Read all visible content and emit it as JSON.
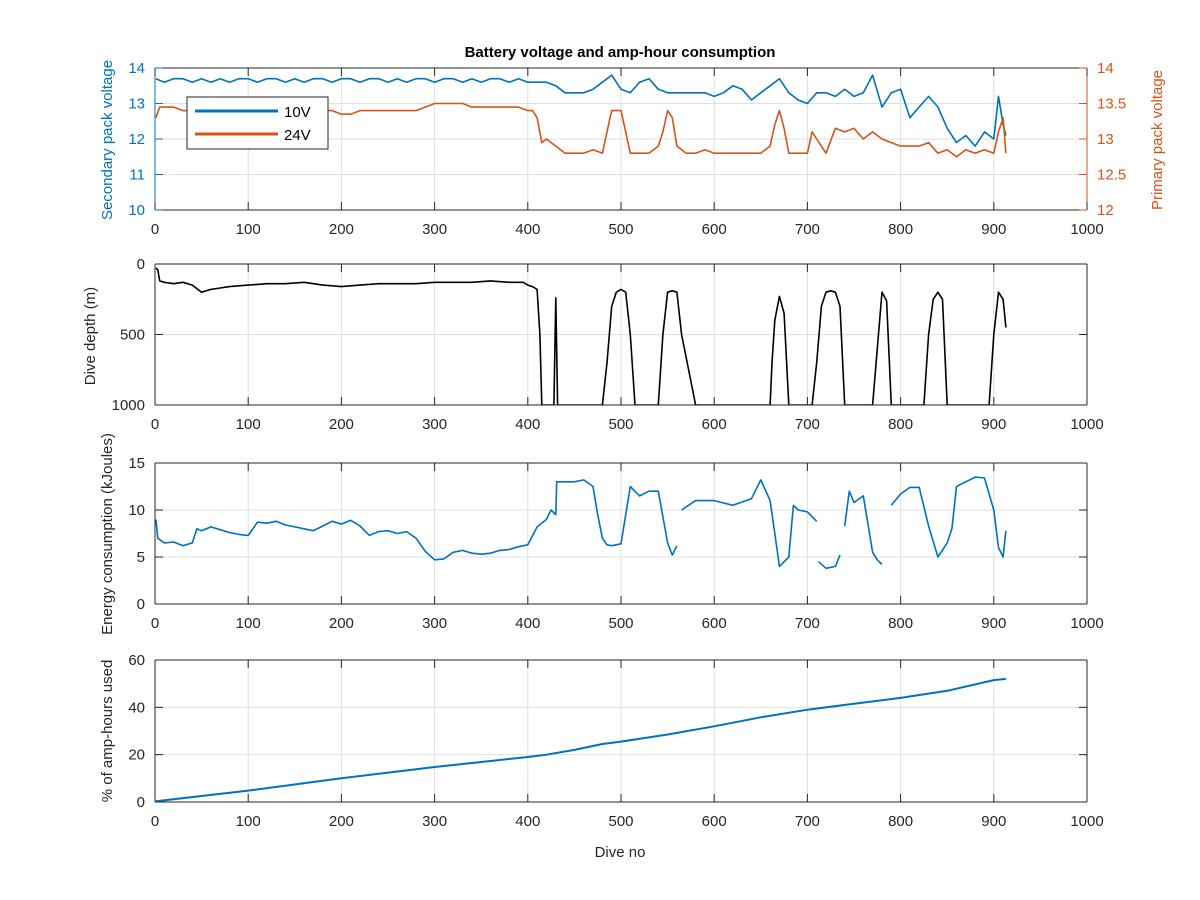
{
  "colors": {
    "blue": "#0072bd",
    "orange": "#d95319",
    "black": "#000000",
    "grid": "#dfdfdf",
    "axis": "#262626"
  },
  "chart_data": [
    {
      "id": "voltage",
      "type": "line",
      "title": "Battery voltage and amp-hour consumption",
      "xlabel": "",
      "ylabel_left": "Secondary pack voltage",
      "ylabel_right": "Primary pack voltage",
      "xlim": [
        0,
        1000
      ],
      "xticks": [
        0,
        100,
        200,
        300,
        400,
        500,
        600,
        700,
        800,
        900,
        1000
      ],
      "ylim_left": [
        10,
        14
      ],
      "yticks_left": [
        10,
        11,
        12,
        13,
        14
      ],
      "ylim_right": [
        12,
        14
      ],
      "yticks_right": [
        12,
        12.5,
        13,
        13.5,
        14
      ],
      "yticklabels_right": [
        "12",
        "12.5",
        "13",
        "13.5",
        "14"
      ],
      "grid": true,
      "legend": {
        "position": "top-left",
        "entries": [
          "10V",
          "24V"
        ]
      },
      "series": [
        {
          "name": "10V",
          "axis": "left",
          "color": "blue",
          "x": [
            1,
            10,
            20,
            30,
            40,
            50,
            60,
            70,
            80,
            90,
            100,
            110,
            120,
            130,
            140,
            150,
            160,
            170,
            180,
            190,
            200,
            210,
            220,
            230,
            240,
            250,
            260,
            270,
            280,
            290,
            300,
            310,
            320,
            330,
            340,
            350,
            360,
            370,
            380,
            390,
            400,
            410,
            420,
            430,
            440,
            450,
            460,
            470,
            480,
            490,
            500,
            510,
            520,
            530,
            540,
            550,
            560,
            570,
            580,
            590,
            600,
            610,
            620,
            630,
            640,
            650,
            660,
            670,
            680,
            690,
            700,
            710,
            720,
            730,
            740,
            750,
            760,
            770,
            780,
            790,
            800,
            810,
            820,
            830,
            840,
            850,
            860,
            870,
            880,
            890,
            900,
            905,
            910,
            913
          ],
          "y": [
            13.7,
            13.6,
            13.7,
            13.7,
            13.6,
            13.7,
            13.6,
            13.7,
            13.6,
            13.7,
            13.7,
            13.6,
            13.7,
            13.7,
            13.6,
            13.7,
            13.6,
            13.7,
            13.7,
            13.6,
            13.7,
            13.7,
            13.6,
            13.7,
            13.7,
            13.6,
            13.7,
            13.6,
            13.7,
            13.7,
            13.6,
            13.7,
            13.7,
            13.6,
            13.7,
            13.6,
            13.7,
            13.7,
            13.6,
            13.7,
            13.6,
            13.6,
            13.6,
            13.5,
            13.3,
            13.3,
            13.3,
            13.4,
            13.6,
            13.8,
            13.4,
            13.3,
            13.6,
            13.7,
            13.4,
            13.3,
            13.3,
            13.3,
            13.3,
            13.3,
            13.2,
            13.3,
            13.5,
            13.4,
            13.1,
            13.3,
            13.5,
            13.7,
            13.3,
            13.1,
            13.0,
            13.3,
            13.3,
            13.2,
            13.4,
            13.2,
            13.3,
            13.8,
            12.9,
            13.3,
            13.4,
            12.6,
            12.9,
            13.2,
            12.9,
            12.3,
            11.9,
            12.1,
            11.8,
            12.2,
            12.0,
            13.2,
            12.4,
            12.1
          ]
        },
        {
          "name": "24V",
          "axis": "right",
          "color": "orange",
          "x": [
            1,
            5,
            10,
            20,
            30,
            40,
            50,
            60,
            70,
            80,
            90,
            100,
            110,
            120,
            130,
            140,
            150,
            160,
            170,
            180,
            190,
            200,
            210,
            220,
            230,
            240,
            250,
            260,
            270,
            280,
            290,
            300,
            310,
            320,
            330,
            340,
            350,
            360,
            370,
            380,
            390,
            400,
            405,
            410,
            415,
            420,
            430,
            440,
            450,
            460,
            470,
            480,
            485,
            490,
            500,
            505,
            510,
            520,
            530,
            540,
            545,
            550,
            555,
            560,
            570,
            580,
            590,
            600,
            610,
            620,
            630,
            640,
            650,
            660,
            665,
            670,
            675,
            680,
            690,
            700,
            705,
            710,
            720,
            730,
            740,
            750,
            760,
            770,
            780,
            790,
            800,
            810,
            820,
            830,
            840,
            850,
            860,
            870,
            880,
            890,
            900,
            905,
            910,
            913
          ],
          "y": [
            13.3,
            13.45,
            13.45,
            13.45,
            13.4,
            13.4,
            13.4,
            13.4,
            13.4,
            13.4,
            13.4,
            13.4,
            13.4,
            13.4,
            13.45,
            13.4,
            13.4,
            13.4,
            13.4,
            13.4,
            13.4,
            13.35,
            13.35,
            13.4,
            13.4,
            13.4,
            13.4,
            13.4,
            13.4,
            13.4,
            13.45,
            13.5,
            13.5,
            13.5,
            13.5,
            13.45,
            13.45,
            13.45,
            13.45,
            13.45,
            13.45,
            13.4,
            13.4,
            13.3,
            12.95,
            13.0,
            12.9,
            12.8,
            12.8,
            12.8,
            12.85,
            12.8,
            13.1,
            13.4,
            13.4,
            13.1,
            12.8,
            12.8,
            12.8,
            12.9,
            13.1,
            13.4,
            13.3,
            12.9,
            12.8,
            12.8,
            12.85,
            12.8,
            12.8,
            12.8,
            12.8,
            12.8,
            12.8,
            12.9,
            13.2,
            13.4,
            13.15,
            12.8,
            12.8,
            12.8,
            13.1,
            13.0,
            12.8,
            13.15,
            13.1,
            13.15,
            13.0,
            13.1,
            13.0,
            12.95,
            12.9,
            12.9,
            12.9,
            12.95,
            12.8,
            12.85,
            12.75,
            12.85,
            12.8,
            12.85,
            12.8,
            13.1,
            13.3,
            12.8
          ]
        }
      ]
    },
    {
      "id": "depth",
      "type": "line",
      "title": "",
      "xlabel": "",
      "ylabel": "Dive depth (m)",
      "xlim": [
        0,
        1000
      ],
      "xticks": [
        0,
        100,
        200,
        300,
        400,
        500,
        600,
        700,
        800,
        900,
        1000
      ],
      "ylim": [
        0,
        1000
      ],
      "yticks": [
        0,
        500,
        1000
      ],
      "yreversed": true,
      "grid": true,
      "series": [
        {
          "name": "",
          "color": "black",
          "x": [
            1,
            3,
            5,
            10,
            20,
            30,
            40,
            50,
            60,
            70,
            80,
            100,
            120,
            140,
            160,
            180,
            200,
            220,
            240,
            260,
            280,
            300,
            320,
            340,
            360,
            380,
            395,
            400,
            405,
            410,
            413,
            415,
            418,
            420,
            428,
            430,
            432,
            434,
            436,
            450,
            470,
            480,
            485,
            490,
            495,
            500,
            505,
            510,
            515,
            530,
            540,
            545,
            550,
            555,
            560,
            565,
            580,
            600,
            620,
            640,
            660,
            662,
            665,
            670,
            675,
            680,
            690,
            700,
            705,
            710,
            715,
            720,
            725,
            730,
            735,
            740,
            760,
            770,
            775,
            780,
            785,
            790,
            800,
            820,
            825,
            830,
            835,
            840,
            845,
            850,
            860,
            880,
            890,
            895,
            900,
            905,
            910,
            913
          ],
          "y": [
            30,
            40,
            120,
            130,
            140,
            130,
            150,
            200,
            180,
            170,
            160,
            150,
            140,
            140,
            130,
            150,
            160,
            150,
            140,
            140,
            140,
            130,
            130,
            130,
            120,
            130,
            130,
            150,
            160,
            180,
            500,
            1000,
            1000,
            1000,
            1000,
            240,
            1000,
            1000,
            1000,
            1000,
            1000,
            1000,
            700,
            300,
            200,
            180,
            200,
            500,
            1000,
            1000,
            1000,
            500,
            200,
            190,
            200,
            500,
            1000,
            1000,
            1000,
            1000,
            1000,
            700,
            400,
            230,
            350,
            1000,
            1000,
            1000,
            1000,
            700,
            300,
            200,
            190,
            200,
            300,
            1000,
            1000,
            1000,
            600,
            200,
            260,
            1000,
            1000,
            1000,
            1000,
            500,
            250,
            200,
            250,
            1000,
            1000,
            1000,
            1000,
            1000,
            500,
            200,
            250,
            450
          ]
        }
      ]
    },
    {
      "id": "energy",
      "type": "line",
      "title": "",
      "xlabel": "",
      "ylabel": "Energy consumption (kJoules)",
      "xlim": [
        0,
        1000
      ],
      "xticks": [
        0,
        100,
        200,
        300,
        400,
        500,
        600,
        700,
        800,
        900,
        1000
      ],
      "ylim": [
        0,
        15
      ],
      "yticks": [
        0,
        5,
        10,
        15
      ],
      "grid": true,
      "series": [
        {
          "name": "",
          "color": "blue",
          "x": [
            1,
            3,
            10,
            20,
            30,
            40,
            45,
            50,
            60,
            70,
            80,
            90,
            100,
            110,
            120,
            130,
            140,
            150,
            160,
            170,
            180,
            190,
            200,
            210,
            220,
            230,
            240,
            250,
            260,
            270,
            280,
            290,
            300,
            310,
            320,
            330,
            340,
            350,
            360,
            370,
            380,
            390,
            400,
            410,
            420,
            425,
            430,
            431,
            435,
            440,
            450,
            460,
            470,
            475,
            480,
            485,
            490,
            500,
            510,
            520,
            530,
            540,
            550,
            555,
            560,
            null,
            565,
            580,
            600,
            620,
            640,
            650,
            660,
            665,
            670,
            680,
            685,
            690,
            700,
            710,
            null,
            712,
            720,
            730,
            735,
            null,
            740,
            745,
            750,
            760,
            770,
            775,
            780,
            null,
            790,
            800,
            810,
            820,
            830,
            840,
            850,
            855,
            860,
            870,
            880,
            890,
            900,
            905,
            910,
            913
          ],
          "y": [
            9.0,
            7.0,
            6.5,
            6.6,
            6.2,
            6.5,
            8.0,
            7.8,
            8.2,
            7.9,
            7.6,
            7.4,
            7.3,
            8.7,
            8.6,
            8.8,
            8.4,
            8.2,
            8.0,
            7.8,
            8.3,
            8.8,
            8.5,
            8.9,
            8.3,
            7.3,
            7.7,
            7.8,
            7.5,
            7.7,
            7.0,
            5.6,
            4.7,
            4.8,
            5.5,
            5.7,
            5.4,
            5.3,
            5.4,
            5.7,
            5.8,
            6.1,
            6.3,
            8.2,
            9.0,
            10.0,
            9.5,
            13.0,
            13.0,
            13.0,
            13.0,
            13.2,
            12.5,
            9.5,
            7.0,
            6.3,
            6.2,
            6.4,
            12.5,
            11.5,
            12.0,
            12.0,
            6.5,
            5.2,
            6.2,
            null,
            10.0,
            11.0,
            11.0,
            10.5,
            11.2,
            13.2,
            11.0,
            7.5,
            4.0,
            5.0,
            10.5,
            10.0,
            9.8,
            8.8,
            null,
            4.5,
            3.8,
            4.0,
            5.2,
            null,
            8.3,
            12.0,
            10.8,
            11.5,
            5.5,
            4.7,
            4.2,
            null,
            10.5,
            11.7,
            12.4,
            12.4,
            8.3,
            5.0,
            6.5,
            8.0,
            12.5,
            13.0,
            13.5,
            13.4,
            10.0,
            6.0,
            5.0,
            7.8
          ]
        }
      ]
    },
    {
      "id": "amphours",
      "type": "line",
      "title": "",
      "xlabel": "Dive no",
      "ylabel": "% of amp-hours used",
      "xlim": [
        0,
        1000
      ],
      "xticks": [
        0,
        100,
        200,
        300,
        400,
        500,
        600,
        700,
        800,
        900,
        1000
      ],
      "ylim": [
        0,
        60
      ],
      "yticks": [
        0,
        20,
        40,
        60
      ],
      "grid": true,
      "series": [
        {
          "name": "",
          "color": "blue",
          "x": [
            1,
            100,
            200,
            300,
            400,
            420,
            450,
            480,
            500,
            550,
            600,
            650,
            700,
            750,
            800,
            850,
            900,
            913
          ],
          "y": [
            0.3,
            4.8,
            10.0,
            14.8,
            19.0,
            20.0,
            22.0,
            24.5,
            25.5,
            28.5,
            32.0,
            35.8,
            39.0,
            41.5,
            44.0,
            47.0,
            51.5,
            52.0
          ]
        }
      ]
    }
  ]
}
